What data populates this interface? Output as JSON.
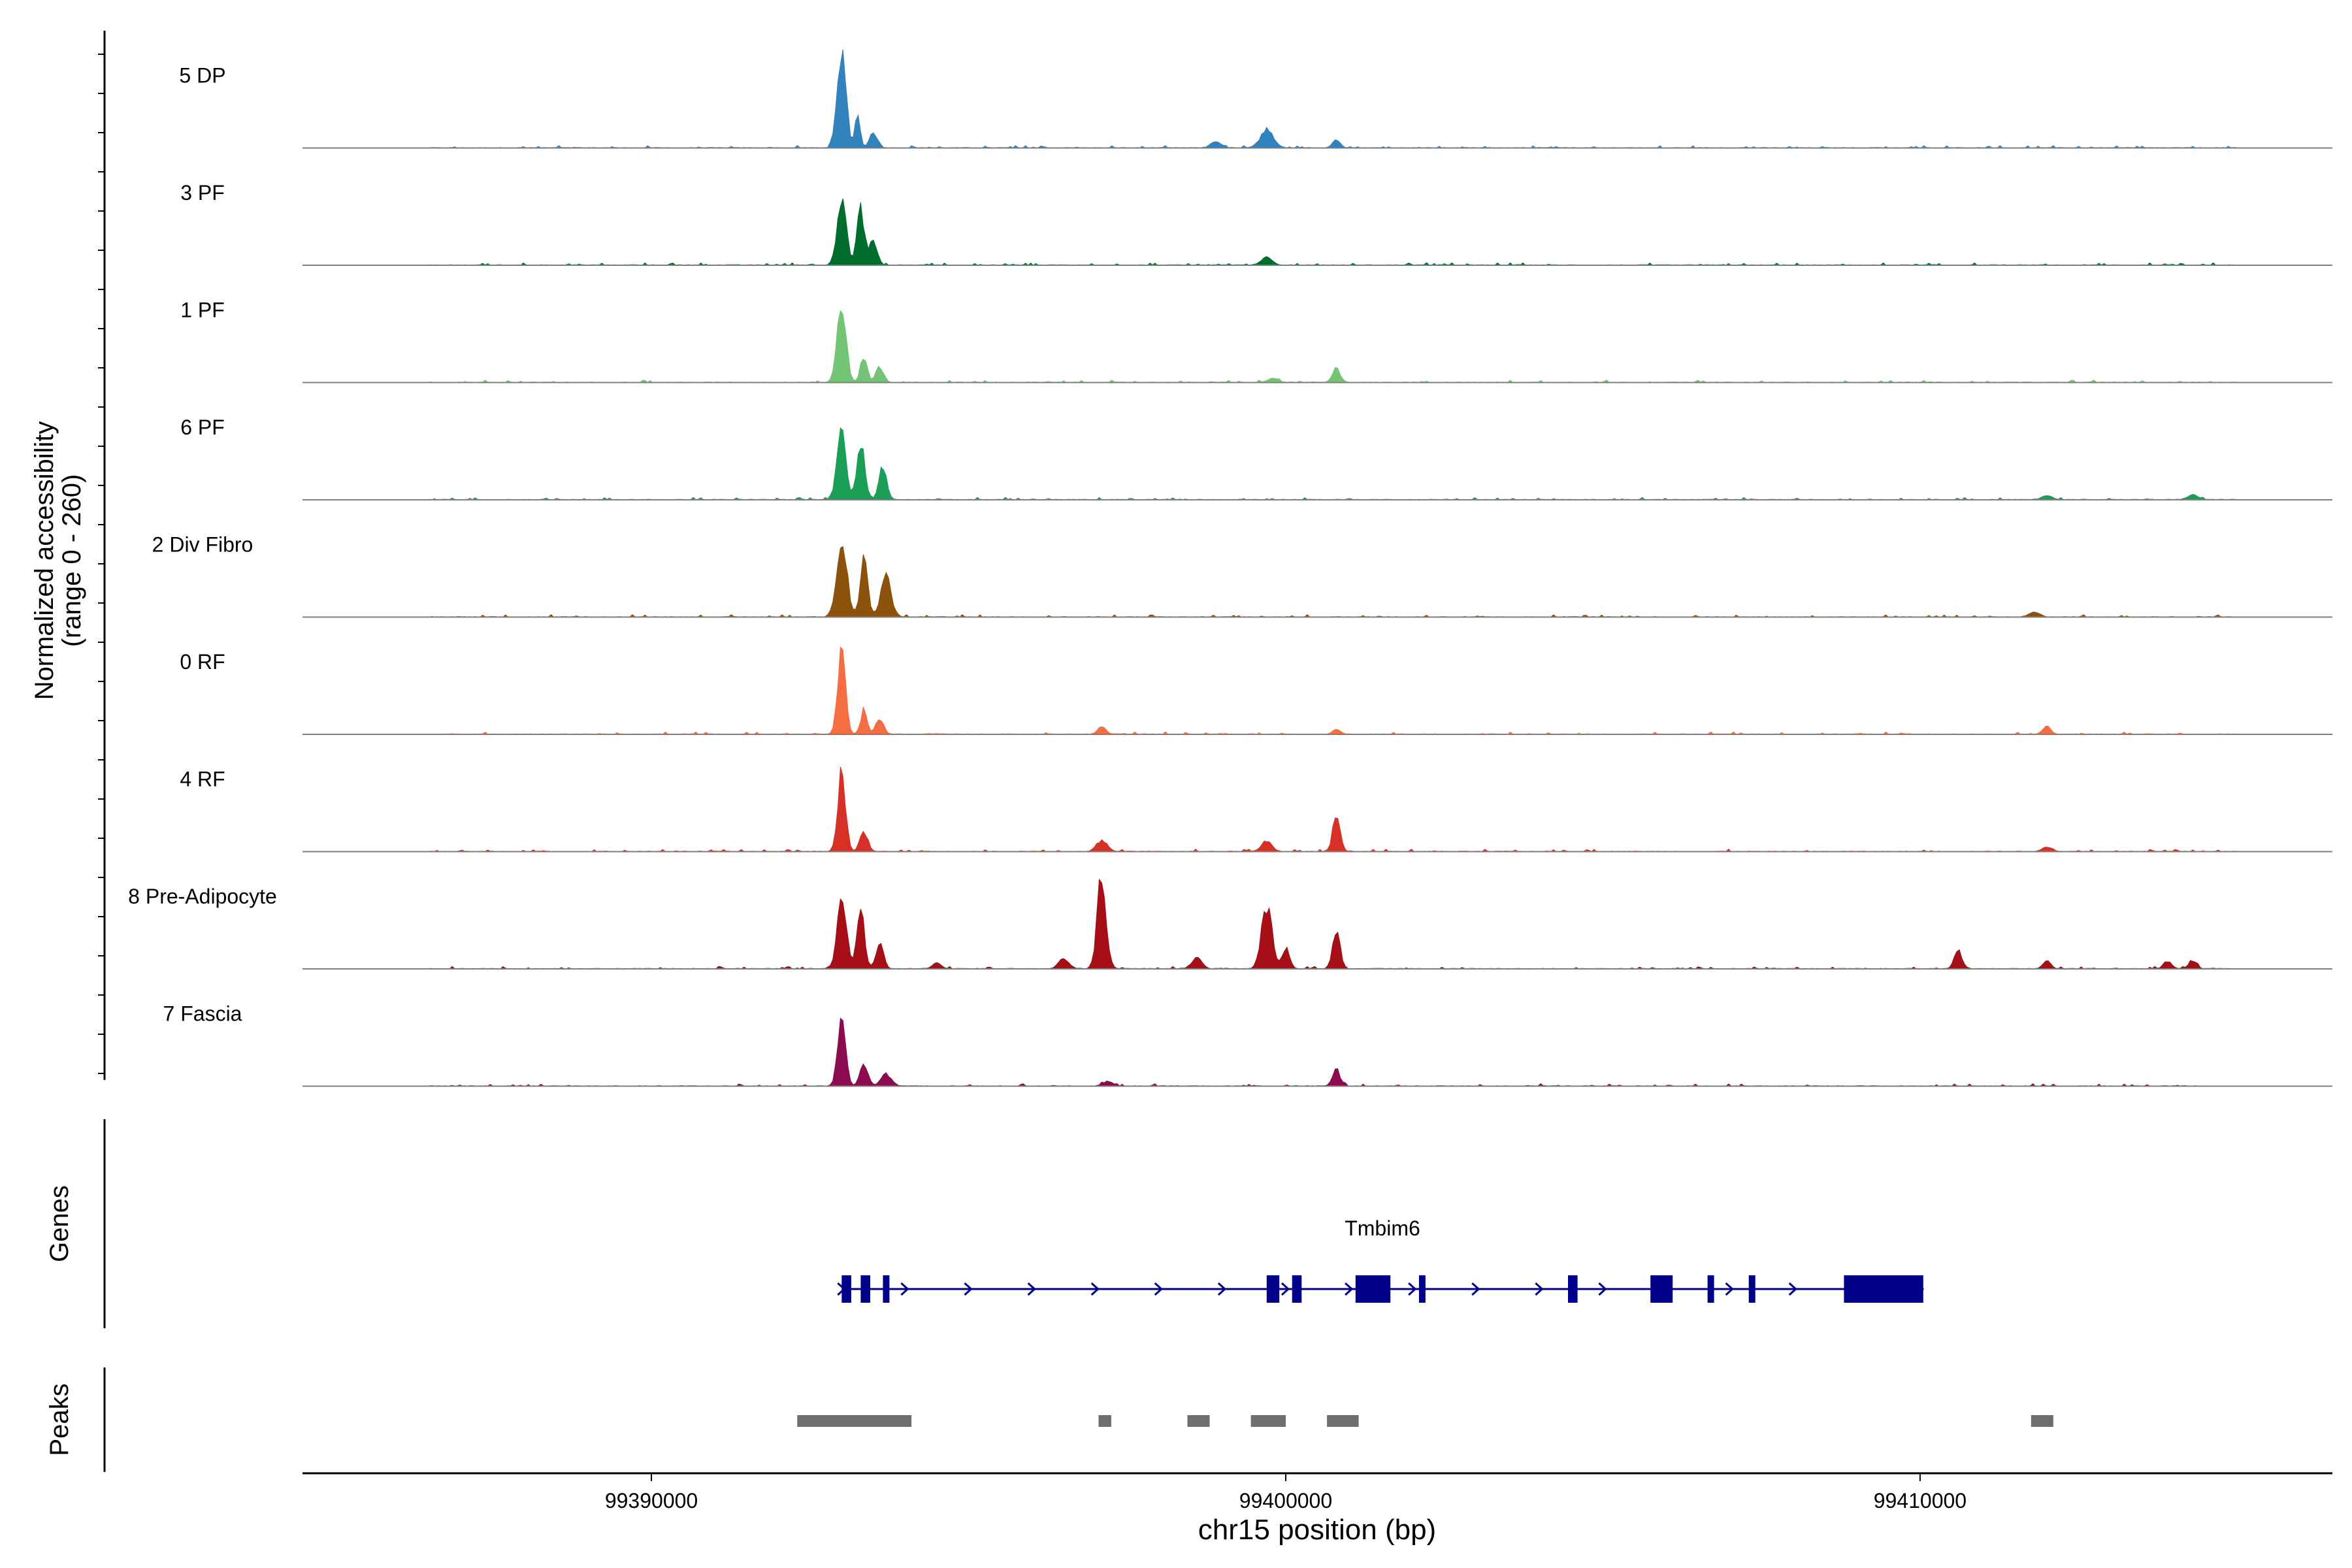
{
  "chart_data": {
    "type": "area",
    "title": "",
    "xlabel": "chr15 position (bp)",
    "ylabel": "Normalized accessibility",
    "ylabel_range": "(range 0 - 260)",
    "xlim": [
      99384500,
      99416500
    ],
    "ylim": [
      0,
      260
    ],
    "x_ticks": [
      99390000,
      99400000,
      99410000
    ],
    "x_tick_labels": [
      "99390000",
      "99400000",
      "99410000"
    ],
    "track_extent": [
      99386500,
      99415000
    ],
    "tracks": [
      {
        "name": "5 DP",
        "color": "#3182bd",
        "peaks": [
          [
            99393000,
            230,
            70
          ],
          [
            99393250,
            80,
            40
          ],
          [
            99393500,
            40,
            60
          ],
          [
            99399700,
            45,
            100
          ],
          [
            99398900,
            15,
            80
          ],
          [
            99400800,
            20,
            60
          ]
        ]
      },
      {
        "name": "3 PF",
        "color": "#006d2c",
        "peaks": [
          [
            99393000,
            180,
            70
          ],
          [
            99393300,
            140,
            60
          ],
          [
            99393500,
            60,
            60
          ],
          [
            99399700,
            20,
            80
          ]
        ]
      },
      {
        "name": "1 PF",
        "color": "#74c476",
        "peaks": [
          [
            99393000,
            195,
            70
          ],
          [
            99393350,
            70,
            50
          ],
          [
            99393600,
            40,
            60
          ],
          [
            99400800,
            35,
            60
          ],
          [
            99399800,
            10,
            80
          ]
        ]
      },
      {
        "name": "6 PF",
        "color": "#1b9e55",
        "peaks": [
          [
            99393000,
            170,
            70
          ],
          [
            99393300,
            150,
            60
          ],
          [
            99393650,
            80,
            60
          ],
          [
            99412000,
            10,
            80
          ],
          [
            99414300,
            12,
            80
          ]
        ]
      },
      {
        "name": "2 Div Fibro",
        "color": "#8c510a",
        "peaks": [
          [
            99393000,
            200,
            80
          ],
          [
            99393350,
            140,
            60
          ],
          [
            99393700,
            100,
            80
          ],
          [
            99411800,
            12,
            80
          ]
        ]
      },
      {
        "name": "0 RF",
        "color": "#f46d43",
        "peaks": [
          [
            99393000,
            210,
            60
          ],
          [
            99393350,
            60,
            50
          ],
          [
            99393600,
            40,
            60
          ],
          [
            99397100,
            20,
            60
          ],
          [
            99412000,
            20,
            60
          ],
          [
            99400800,
            12,
            60
          ]
        ]
      },
      {
        "name": "4 RF",
        "color": "#d73027",
        "peaks": [
          [
            99393000,
            215,
            60
          ],
          [
            99393350,
            50,
            60
          ],
          [
            99397100,
            30,
            80
          ],
          [
            99399700,
            25,
            80
          ],
          [
            99400800,
            80,
            60
          ],
          [
            99412000,
            10,
            80
          ]
        ]
      },
      {
        "name": "8 Pre-Adipocyte",
        "color": "#a50f15",
        "peaks": [
          [
            99393000,
            190,
            70
          ],
          [
            99393300,
            140,
            60
          ],
          [
            99393600,
            60,
            60
          ],
          [
            99397100,
            230,
            70
          ],
          [
            99399700,
            160,
            80
          ],
          [
            99400000,
            50,
            60
          ],
          [
            99400800,
            90,
            60
          ],
          [
            99394500,
            15,
            60
          ],
          [
            99396500,
            25,
            80
          ],
          [
            99398600,
            25,
            80
          ],
          [
            99410600,
            45,
            60
          ],
          [
            99412000,
            20,
            60
          ],
          [
            99413900,
            20,
            60
          ],
          [
            99414300,
            20,
            60
          ]
        ]
      },
      {
        "name": "7 Fascia",
        "color": "#8b0a50",
        "peaks": [
          [
            99393000,
            185,
            60
          ],
          [
            99393350,
            60,
            60
          ],
          [
            99393700,
            30,
            80
          ],
          [
            99400800,
            40,
            60
          ],
          [
            99397200,
            10,
            80
          ]
        ]
      }
    ],
    "genes_label": "Genes",
    "gene": {
      "name": "Tmbim6",
      "color": "#00008b",
      "strand": "+",
      "start": 99393000,
      "end": 99410050,
      "exons": [
        [
          99393000,
          99393150
        ],
        [
          99393300,
          99393450
        ],
        [
          99393650,
          99393750
        ],
        [
          99399700,
          99399900
        ],
        [
          99400100,
          99400250
        ],
        [
          99401100,
          99401650
        ],
        [
          99402100,
          99402200
        ],
        [
          99404450,
          99404600
        ],
        [
          99405750,
          99406100
        ],
        [
          99406650,
          99406750
        ],
        [
          99407300,
          99407400
        ],
        [
          99408800,
          99410050
        ]
      ]
    },
    "peaks_label": "Peaks",
    "peak_color": "#6e6e6e",
    "peak_regions": [
      [
        99392300,
        99394100
      ],
      [
        99397050,
        99397250
      ],
      [
        99398450,
        99398800
      ],
      [
        99399450,
        99400000
      ],
      [
        99400650,
        99401150
      ],
      [
        99411750,
        99412100
      ]
    ]
  }
}
